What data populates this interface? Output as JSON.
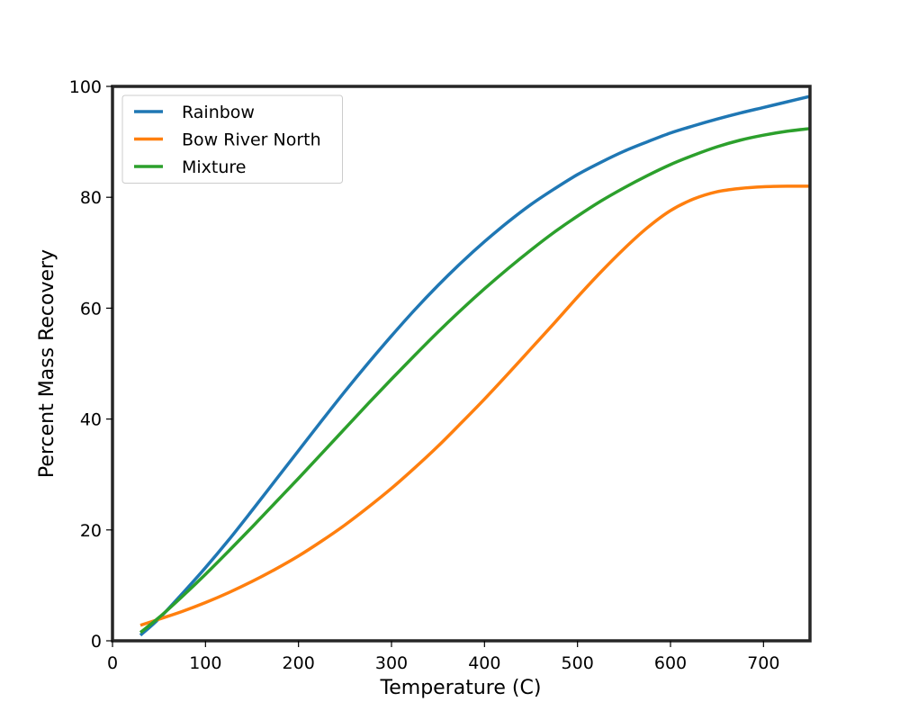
{
  "chart_data": {
    "type": "line",
    "title": "",
    "xlabel": "Temperature (C)",
    "ylabel": "Percent Mass Recovery",
    "xlim": [
      0,
      750
    ],
    "ylim": [
      0,
      100
    ],
    "xticks": [
      0,
      100,
      200,
      300,
      400,
      500,
      600,
      700
    ],
    "yticks": [
      0,
      20,
      40,
      60,
      80,
      100
    ],
    "grid": false,
    "legend_position": "top-left",
    "series": [
      {
        "name": "Rainbow",
        "color": "#1f77b4",
        "x": [
          30,
          50,
          75,
          100,
          125,
          150,
          175,
          200,
          225,
          250,
          275,
          300,
          325,
          350,
          375,
          400,
          425,
          450,
          475,
          500,
          525,
          550,
          575,
          600,
          625,
          650,
          675,
          700,
          725,
          750
        ],
        "y": [
          1,
          4,
          8.5,
          13.2,
          18.2,
          23.5,
          28.9,
          34.3,
          39.7,
          45.0,
          50.1,
          55.0,
          59.7,
          64.1,
          68.2,
          72.0,
          75.5,
          78.7,
          81.5,
          84.1,
          86.3,
          88.3,
          90.0,
          91.6,
          92.9,
          94.1,
          95.2,
          96.2,
          97.2,
          98.2
        ]
      },
      {
        "name": "Bow River North",
        "color": "#ff7f0e",
        "x": [
          30,
          50,
          75,
          100,
          125,
          150,
          175,
          200,
          225,
          250,
          275,
          300,
          325,
          350,
          375,
          400,
          425,
          450,
          475,
          500,
          525,
          550,
          575,
          600,
          625,
          650,
          675,
          700,
          725,
          750
        ],
        "y": [
          2.8,
          3.9,
          5.3,
          6.9,
          8.7,
          10.7,
          12.9,
          15.3,
          18.0,
          20.9,
          24.1,
          27.5,
          31.2,
          35.1,
          39.3,
          43.6,
          48.1,
          52.7,
          57.3,
          62.0,
          66.5,
          70.7,
          74.5,
          77.6,
          79.7,
          81.0,
          81.6,
          81.9,
          82.0,
          82.0
        ]
      },
      {
        "name": "Mixture",
        "color": "#2ca02c",
        "x": [
          30,
          50,
          75,
          100,
          125,
          150,
          175,
          200,
          225,
          250,
          275,
          300,
          325,
          350,
          375,
          400,
          425,
          450,
          475,
          500,
          525,
          550,
          575,
          600,
          625,
          650,
          675,
          700,
          725,
          750
        ],
        "y": [
          1.5,
          4.2,
          8.0,
          12.0,
          16.2,
          20.5,
          24.9,
          29.3,
          33.8,
          38.3,
          42.8,
          47.2,
          51.5,
          55.7,
          59.7,
          63.5,
          67.1,
          70.5,
          73.7,
          76.6,
          79.3,
          81.7,
          83.9,
          85.9,
          87.6,
          89.1,
          90.3,
          91.2,
          91.9,
          92.4
        ]
      }
    ]
  }
}
